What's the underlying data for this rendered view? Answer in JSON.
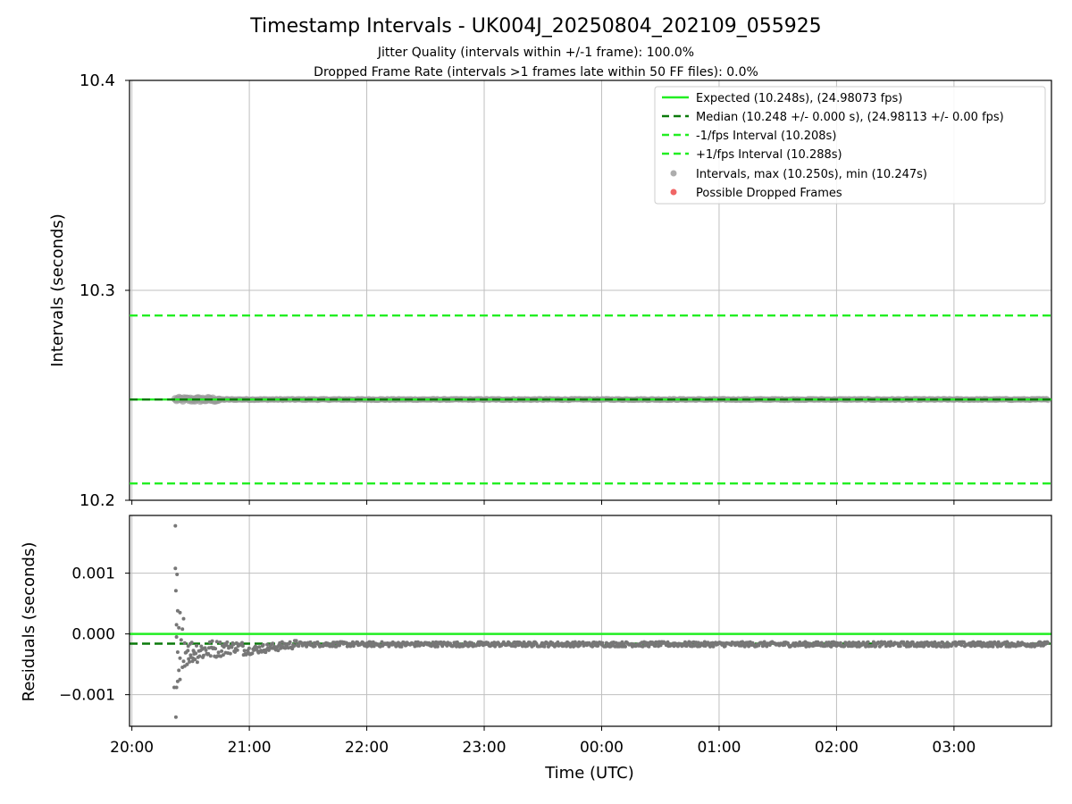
{
  "chart_data": [
    {
      "type": "scatter",
      "title": "Timestamp Intervals - UK004J_20250804_202109_055925",
      "subtitle_1": "Jitter Quality (intervals within +/-1 frame): 100.0%",
      "subtitle_2": "Dropped Frame Rate (intervals >1 frames late within 50 FF files): 0.0%",
      "xlabel": "",
      "ylabel": "Intervals (seconds)",
      "ylim": [
        10.2,
        10.4
      ],
      "yticks": [
        "10.2",
        "10.3",
        "10.4"
      ],
      "grid": true,
      "legend_position": "upper right",
      "reference_lines": [
        {
          "name": "Expected (10.248s), (24.98073 fps)",
          "y": 10.248,
          "style": "solid",
          "color": "#22ee22"
        },
        {
          "name": "Median (10.248 +/- 0.000 s), (24.98113 +/- 0.00 fps)",
          "y": 10.248,
          "style": "dashed",
          "color": "#0a7a0a"
        },
        {
          "name": "-1/fps Interval (10.208s)",
          "y": 10.208,
          "style": "dashed",
          "color": "#22ee22"
        },
        {
          "name": "+1/fps Interval (10.288s)",
          "y": 10.288,
          "style": "dashed",
          "color": "#22ee22"
        }
      ],
      "series": [
        {
          "name": "Intervals, max (10.250s), min (10.247s)",
          "color": "#999999",
          "x_start_hours": 20.37,
          "x_end_hours": 27.8,
          "y_min": 10.247,
          "y_max": 10.25,
          "y_typical": 10.248
        },
        {
          "name": "Possible Dropped Frames",
          "color": "#ee5555",
          "points": []
        }
      ]
    },
    {
      "type": "scatter",
      "xlabel": "Time (UTC)",
      "ylabel": "Residuals (seconds)",
      "xlim_hours": [
        19.98,
        27.83
      ],
      "ylim": [
        -0.00152,
        0.00195
      ],
      "yticks": [
        "0.001",
        "0.000",
        "−0.001"
      ],
      "xticks": [
        "20:00",
        "21:00",
        "22:00",
        "23:00",
        "00:00",
        "01:00",
        "02:00",
        "03:00"
      ],
      "grid": true,
      "reference_lines": [
        {
          "name": "Expected",
          "y": 0.0,
          "style": "solid",
          "color": "#22ee22"
        },
        {
          "name": "Median",
          "y": -0.00016,
          "style": "dashed",
          "color": "#0a7a0a"
        }
      ],
      "series": [
        {
          "name": "Residuals",
          "color": "#777777",
          "early_points": [
            [
              20.37,
              0.00178
            ],
            [
              20.37,
              0.00108
            ],
            [
              20.385,
              0.00098
            ],
            [
              20.375,
              0.00071
            ],
            [
              20.39,
              0.00038
            ],
            [
              20.41,
              0.00035
            ],
            [
              20.44,
              0.00025
            ],
            [
              20.38,
              0.00015
            ],
            [
              20.4,
              0.0001
            ],
            [
              20.43,
              8e-05
            ],
            [
              20.38,
              -5e-05
            ],
            [
              20.42,
              -0.0001
            ],
            [
              20.45,
              -0.00015
            ],
            [
              20.39,
              -0.0003
            ],
            [
              20.41,
              -0.0004
            ],
            [
              20.44,
              -0.00045
            ],
            [
              20.4,
              -0.0006
            ],
            [
              20.43,
              -0.00055
            ],
            [
              20.47,
              -0.0005
            ],
            [
              20.41,
              -0.00075
            ],
            [
              20.39,
              -0.00078
            ],
            [
              20.36,
              -0.00088
            ],
            [
              20.38,
              -0.00088
            ],
            [
              20.375,
              -0.00137
            ],
            [
              20.5,
              -0.00035
            ],
            [
              20.53,
              -0.0003
            ],
            [
              20.48,
              -0.0002
            ],
            [
              20.52,
              -0.0004
            ]
          ],
          "trend": {
            "x_start": 20.37,
            "x_end": 27.8,
            "settled_y": -0.00017,
            "dip_x": 21.05,
            "dip_y": -0.00028
          }
        }
      ]
    }
  ]
}
